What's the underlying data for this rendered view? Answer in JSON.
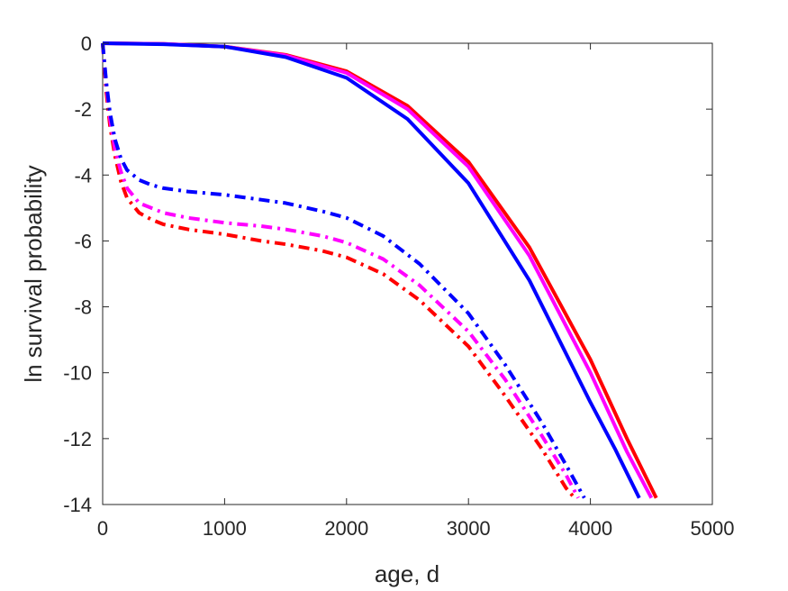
{
  "chart_data": {
    "type": "line",
    "title": "",
    "xlabel": "age, d",
    "ylabel": "ln survival probability",
    "xlim": [
      0,
      5000
    ],
    "ylim": [
      -14,
      0
    ],
    "xticks": [
      0,
      1000,
      2000,
      3000,
      4000,
      5000
    ],
    "yticks": [
      0,
      -2,
      -4,
      -6,
      -8,
      -10,
      -12,
      -14
    ],
    "xtick_labels": [
      "0",
      "1000",
      "2000",
      "3000",
      "4000",
      "5000"
    ],
    "ytick_labels": [
      "0",
      "-2",
      "-4",
      "-6",
      "-8",
      "-10",
      "-12",
      "-14"
    ],
    "grid": false,
    "legend": "none",
    "series": [
      {
        "color": "#ff0000",
        "style": "solid",
        "x": [
          0,
          500,
          1000,
          1500,
          2000,
          2500,
          3000,
          3500,
          4000,
          4300,
          4540
        ],
        "y": [
          0,
          -0.02,
          -0.1,
          -0.35,
          -0.85,
          -1.9,
          -3.6,
          -6.2,
          -9.6,
          -12.0,
          -13.8
        ]
      },
      {
        "color": "#ff00ff",
        "style": "solid",
        "x": [
          0,
          500,
          1000,
          1500,
          2000,
          2500,
          3000,
          3500,
          4000,
          4300,
          4500
        ],
        "y": [
          0,
          -0.02,
          -0.1,
          -0.37,
          -0.9,
          -2.0,
          -3.75,
          -6.45,
          -10.0,
          -12.4,
          -13.8
        ]
      },
      {
        "color": "#0000ff",
        "style": "solid",
        "x": [
          0,
          500,
          1000,
          1500,
          2000,
          2500,
          3000,
          3500,
          4000,
          4200,
          4400
        ],
        "y": [
          0,
          -0.03,
          -0.1,
          -0.42,
          -1.05,
          -2.3,
          -4.25,
          -7.2,
          -10.9,
          -12.3,
          -13.8
        ]
      },
      {
        "color": "#ff0000",
        "style": "dashdot",
        "x": [
          0,
          30,
          60,
          100,
          150,
          200,
          300,
          400,
          500,
          700,
          1000,
          1300,
          1500,
          1800,
          2000,
          2300,
          2600,
          3000,
          3300,
          3600,
          3800,
          3870
        ],
        "y": [
          0,
          -1.5,
          -2.5,
          -3.4,
          -4.2,
          -4.7,
          -5.15,
          -5.35,
          -5.5,
          -5.65,
          -5.8,
          -6.0,
          -6.1,
          -6.3,
          -6.5,
          -7.0,
          -7.8,
          -9.2,
          -10.7,
          -12.3,
          -13.5,
          -13.8
        ]
      },
      {
        "color": "#ff00ff",
        "style": "dashdot",
        "x": [
          0,
          30,
          60,
          100,
          150,
          200,
          300,
          400,
          500,
          700,
          1000,
          1300,
          1500,
          1800,
          2000,
          2300,
          2600,
          3000,
          3300,
          3600,
          3800,
          3900
        ],
        "y": [
          0,
          -1.3,
          -2.3,
          -3.2,
          -3.9,
          -4.4,
          -4.85,
          -5.0,
          -5.15,
          -5.3,
          -5.45,
          -5.55,
          -5.65,
          -5.85,
          -6.05,
          -6.55,
          -7.35,
          -8.75,
          -10.2,
          -11.9,
          -13.1,
          -13.8
        ]
      },
      {
        "color": "#0000ff",
        "style": "dashdot",
        "x": [
          0,
          30,
          60,
          100,
          150,
          200,
          300,
          400,
          500,
          700,
          1000,
          1300,
          1500,
          1800,
          2000,
          2300,
          2600,
          3000,
          3300,
          3600,
          3800,
          3950
        ],
        "y": [
          0,
          -1.2,
          -2.1,
          -2.9,
          -3.5,
          -3.85,
          -4.15,
          -4.3,
          -4.4,
          -4.5,
          -4.6,
          -4.75,
          -4.85,
          -5.1,
          -5.3,
          -5.85,
          -6.7,
          -8.2,
          -9.75,
          -11.5,
          -12.8,
          -13.8
        ]
      }
    ]
  }
}
